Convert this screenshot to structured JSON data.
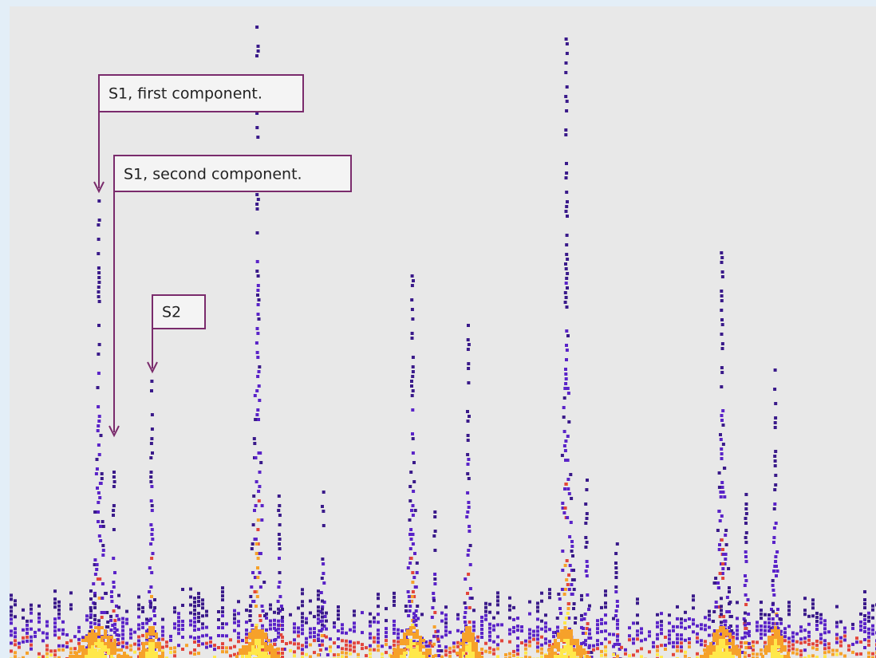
{
  "annotations": [
    {
      "label": "S1, first component."
    },
    {
      "label": "S1, second component."
    },
    {
      "label": "S2"
    }
  ]
}
